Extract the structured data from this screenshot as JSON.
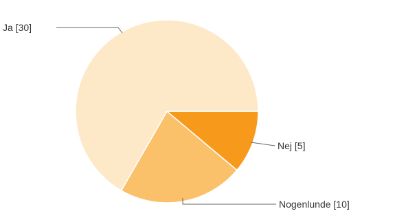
{
  "chart_data": {
    "type": "pie",
    "title": "",
    "slices": [
      {
        "label": "Ja [30]",
        "name": "Ja",
        "value": 30,
        "color": "#fde8c8"
      },
      {
        "label": "Nogenlunde [10]",
        "name": "Nogenlunde",
        "value": 10,
        "color": "#fbc06a"
      },
      {
        "label": "Nej [5]",
        "name": "Nej",
        "value": 5,
        "color": "#f79a1c"
      }
    ],
    "start": "3 o'clock, clockwise"
  }
}
